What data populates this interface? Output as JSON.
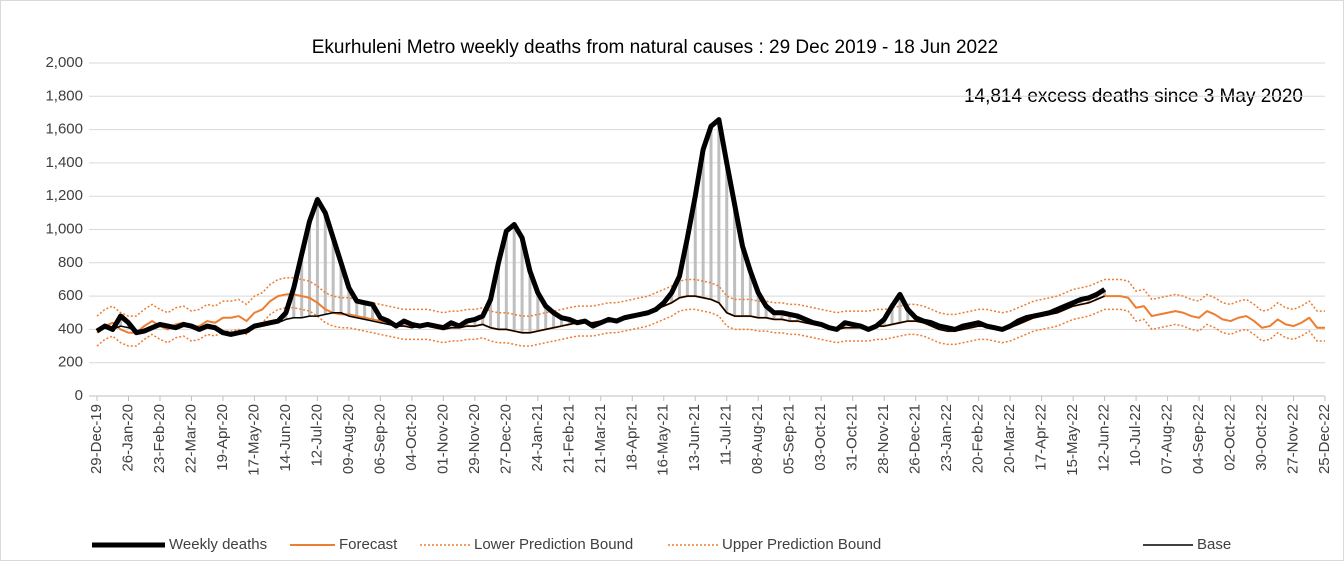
{
  "chart_data": {
    "type": "line",
    "title": "Ekurhuleni Metro weekly deaths from natural causes : 29 Dec 2019  - 18 Jun 2022",
    "annotation": "14,814 excess deaths since 3 May 2020",
    "categories": [
      "29-Dec-19",
      null,
      null,
      null,
      "26-Jan-20",
      null,
      null,
      null,
      "23-Feb-20",
      null,
      null,
      null,
      "22-Mar-20",
      null,
      null,
      null,
      "19-Apr-20",
      null,
      null,
      null,
      "17-May-20",
      null,
      null,
      null,
      "14-Jun-20",
      null,
      null,
      null,
      "12-Jul-20",
      null,
      null,
      null,
      "09-Aug-20",
      null,
      null,
      null,
      "06-Sep-20",
      null,
      null,
      null,
      "04-Oct-20",
      null,
      null,
      null,
      "01-Nov-20",
      null,
      null,
      null,
      "29-Nov-20",
      null,
      null,
      null,
      "27-Dec-20",
      null,
      null,
      null,
      "24-Jan-21",
      null,
      null,
      null,
      "21-Feb-21",
      null,
      null,
      null,
      "21-Mar-21",
      null,
      null,
      null,
      "18-Apr-21",
      null,
      null,
      null,
      "16-May-21",
      null,
      null,
      null,
      "13-Jun-21",
      null,
      null,
      null,
      "11-Jul-21",
      null,
      null,
      null,
      "08-Aug-21",
      null,
      null,
      null,
      "05-Sep-21",
      null,
      null,
      null,
      "03-Oct-21",
      null,
      null,
      null,
      "31-Oct-21",
      null,
      null,
      null,
      "28-Nov-21",
      null,
      null,
      null,
      "26-Dec-21",
      null,
      null,
      null,
      "23-Jan-22",
      null,
      null,
      null,
      "20-Feb-22",
      null,
      null,
      null,
      "20-Mar-22",
      null,
      null,
      null,
      "17-Apr-22",
      null,
      null,
      null,
      "15-May-22",
      null,
      null,
      null,
      "12-Jun-22",
      null,
      null,
      null,
      "10-Jul-22",
      null,
      null,
      null,
      "07-Aug-22",
      null,
      null,
      null,
      "04-Sep-22",
      null,
      null,
      null,
      "02-Oct-22",
      null,
      null,
      null,
      "30-Oct-22",
      null,
      null,
      null,
      "27-Nov-22",
      null,
      null,
      null,
      "25-Dec-22"
    ],
    "series": [
      {
        "name": "Weekly deaths",
        "color": "#000000",
        "style": "thick",
        "values": [
          390,
          420,
          400,
          480,
          440,
          380,
          390,
          410,
          430,
          420,
          410,
          430,
          420,
          400,
          420,
          410,
          380,
          370,
          380,
          390,
          420,
          430,
          440,
          450,
          500,
          650,
          850,
          1050,
          1180,
          1100,
          950,
          800,
          650,
          570,
          560,
          550,
          470,
          450,
          420,
          450,
          430,
          420,
          430,
          420,
          410,
          440,
          420,
          450,
          460,
          480,
          580,
          800,
          990,
          1030,
          950,
          750,
          620,
          540,
          500,
          470,
          460,
          440,
          450,
          420,
          440,
          460,
          450,
          470,
          480,
          490,
          500,
          520,
          560,
          620,
          720,
          950,
          1200,
          1480,
          1620,
          1660,
          1400,
          1150,
          900,
          750,
          620,
          540,
          500,
          500,
          490,
          480,
          460,
          440,
          430,
          410,
          400,
          440,
          430,
          420,
          400,
          420,
          460,
          540,
          610,
          520,
          470,
          450,
          440,
          420,
          410,
          400,
          420,
          430,
          440,
          420,
          410,
          400,
          420,
          450,
          470,
          480,
          490,
          500,
          520,
          540,
          560,
          580,
          590,
          610,
          640,
          null,
          null,
          null,
          null,
          null,
          null,
          null,
          null,
          null,
          null,
          null,
          null,
          null,
          null,
          null,
          null,
          null,
          null,
          null,
          null,
          null,
          null,
          null,
          null,
          null,
          null,
          null,
          null
        ]
      },
      {
        "name": "Forecast",
        "color": "#ed7d31",
        "style": "solid",
        "values": [
          380,
          420,
          440,
          400,
          380,
          380,
          420,
          450,
          420,
          400,
          430,
          440,
          410,
          420,
          450,
          440,
          470,
          470,
          480,
          450,
          500,
          520,
          570,
          600,
          610,
          610,
          600,
          590,
          560,
          520,
          500,
          490,
          490,
          480,
          470,
          460,
          450,
          440,
          430,
          420,
          420,
          420,
          420,
          410,
          400,
          410,
          410,
          420,
          420,
          430,
          410,
          400,
          400,
          390,
          380,
          380,
          390,
          400,
          410,
          420,
          430,
          440,
          440,
          440,
          450,
          460,
          460,
          470,
          480,
          490,
          500,
          520,
          540,
          560,
          590,
          600,
          600,
          590,
          580,
          560,
          500,
          480,
          480,
          480,
          470,
          470,
          460,
          460,
          450,
          450,
          440,
          430,
          420,
          410,
          400,
          410,
          410,
          410,
          410,
          420,
          420,
          430,
          440,
          450,
          450,
          440,
          420,
          400,
          390,
          390,
          400,
          410,
          420,
          420,
          410,
          400,
          410,
          430,
          450,
          470,
          480,
          490,
          500,
          520,
          540,
          550,
          560,
          580,
          600,
          600,
          600,
          590,
          530,
          540,
          480,
          490,
          500,
          510,
          500,
          480,
          470,
          510,
          490,
          460,
          450,
          470,
          480,
          450,
          410,
          420,
          460,
          430,
          420,
          440,
          470,
          410,
          410
        ]
      },
      {
        "name": "Lower Prediction Bound",
        "color": "#ed7d31",
        "style": "dotted",
        "values": [
          300,
          340,
          360,
          320,
          300,
          300,
          340,
          370,
          340,
          320,
          350,
          360,
          330,
          340,
          370,
          360,
          390,
          390,
          400,
          370,
          420,
          440,
          490,
          520,
          530,
          530,
          520,
          510,
          480,
          440,
          420,
          410,
          410,
          400,
          390,
          380,
          370,
          360,
          350,
          340,
          340,
          340,
          340,
          330,
          320,
          330,
          330,
          340,
          340,
          350,
          330,
          320,
          320,
          310,
          300,
          300,
          310,
          320,
          330,
          340,
          350,
          360,
          360,
          360,
          370,
          380,
          380,
          390,
          400,
          410,
          420,
          440,
          460,
          480,
          510,
          520,
          520,
          510,
          500,
          480,
          420,
          400,
          400,
          400,
          390,
          390,
          380,
          380,
          370,
          370,
          360,
          350,
          340,
          330,
          320,
          330,
          330,
          330,
          330,
          340,
          340,
          350,
          360,
          370,
          370,
          360,
          340,
          320,
          310,
          310,
          320,
          330,
          340,
          340,
          330,
          320,
          330,
          350,
          370,
          390,
          400,
          410,
          420,
          440,
          460,
          470,
          480,
          500,
          520,
          520,
          520,
          510,
          450,
          460,
          400,
          410,
          420,
          430,
          420,
          400,
          390,
          430,
          410,
          380,
          370,
          390,
          400,
          370,
          330,
          340,
          380,
          350,
          340,
          360,
          390,
          330,
          330
        ]
      },
      {
        "name": "Upper Prediction Bound",
        "color": "#ed7d31",
        "style": "dotted",
        "values": [
          480,
          520,
          540,
          500,
          480,
          480,
          520,
          550,
          520,
          500,
          530,
          540,
          510,
          520,
          550,
          540,
          570,
          570,
          580,
          550,
          600,
          620,
          670,
          700,
          710,
          710,
          700,
          690,
          660,
          620,
          600,
          590,
          590,
          580,
          570,
          560,
          550,
          540,
          530,
          520,
          520,
          520,
          520,
          510,
          500,
          510,
          510,
          520,
          520,
          530,
          510,
          500,
          500,
          490,
          480,
          480,
          490,
          500,
          510,
          520,
          530,
          540,
          540,
          540,
          550,
          560,
          560,
          570,
          580,
          590,
          600,
          620,
          640,
          660,
          690,
          700,
          700,
          690,
          680,
          660,
          600,
          580,
          580,
          580,
          570,
          570,
          560,
          560,
          550,
          550,
          540,
          530,
          520,
          510,
          500,
          510,
          510,
          510,
          510,
          520,
          520,
          530,
          540,
          550,
          550,
          540,
          520,
          500,
          490,
          490,
          500,
          510,
          520,
          520,
          510,
          500,
          510,
          530,
          550,
          570,
          580,
          590,
          600,
          620,
          640,
          650,
          660,
          680,
          700,
          700,
          700,
          690,
          630,
          640,
          580,
          590,
          600,
          610,
          600,
          580,
          570,
          610,
          590,
          560,
          550,
          570,
          580,
          550,
          510,
          520,
          560,
          530,
          520,
          540,
          570,
          510,
          510
        ]
      },
      {
        "name": "Base",
        "color": "#000000",
        "style": "thin",
        "values": [
          390,
          410,
          400,
          420,
          410,
          390,
          400,
          410,
          420,
          410,
          410,
          420,
          410,
          400,
          410,
          400,
          380,
          370,
          380,
          390,
          410,
          420,
          430,
          440,
          460,
          470,
          470,
          480,
          480,
          490,
          500,
          500,
          480,
          470,
          460,
          450,
          440,
          430,
          420,
          420,
          410,
          420,
          420,
          410,
          400,
          410,
          410,
          420,
          420,
          430,
          410,
          400,
          400,
          390,
          380,
          380,
          390,
          400,
          410,
          420,
          430,
          440,
          440,
          440,
          450,
          460,
          460,
          470,
          480,
          490,
          500,
          520,
          540,
          560,
          590,
          600,
          600,
          590,
          580,
          560,
          500,
          480,
          480,
          480,
          470,
          470,
          460,
          460,
          450,
          450,
          440,
          430,
          420,
          410,
          400,
          410,
          410,
          410,
          410,
          420,
          420,
          430,
          440,
          450,
          450,
          440,
          420,
          400,
          390,
          390,
          400,
          410,
          420,
          420,
          410,
          400,
          410,
          430,
          450,
          470,
          480,
          490,
          500,
          520,
          540,
          550,
          560,
          580,
          600,
          null,
          null,
          null,
          null,
          null,
          null,
          null,
          null,
          null,
          null,
          null,
          null,
          null,
          null,
          null,
          null,
          null,
          null,
          null,
          null,
          null,
          null,
          null,
          null,
          null,
          null,
          null,
          null
        ]
      }
    ],
    "ylim": [
      0,
      2000
    ],
    "yticks": [
      0,
      200,
      400,
      600,
      800,
      {
        "value": 1000,
        "label": "1,000"
      },
      {
        "value": 1200,
        "label": "1,200"
      },
      {
        "value": 1400,
        "label": "1,400"
      },
      {
        "value": 1600,
        "label": "1,600"
      },
      {
        "value": 1800,
        "label": "1,800"
      },
      {
        "value": 2000,
        "label": "2,000"
      }
    ],
    "grid": true,
    "legend": "bottom",
    "excess_fill": "#bfbfbf"
  }
}
